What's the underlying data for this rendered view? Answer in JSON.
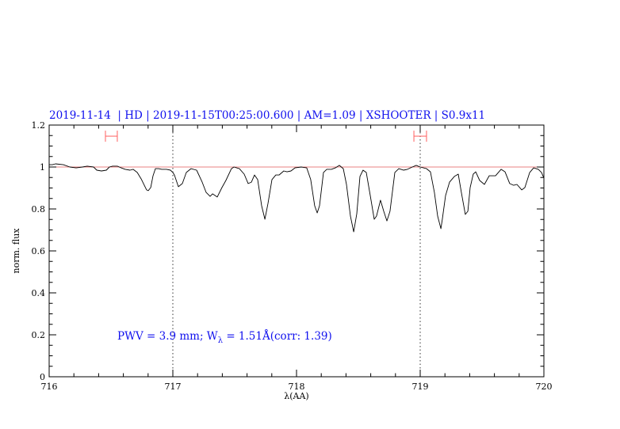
{
  "chart_data": {
    "type": "line",
    "title": "2019-11-14  | HD | 2019-11-15T00:25:00.600 | AM=1.09 | XSHOOTER | S0.9x11",
    "xlabel": "λ(AA)",
    "ylabel": "norm. flux",
    "xlim": [
      716,
      720
    ],
    "ylim": [
      0,
      1.2
    ],
    "xticks": [
      "716",
      "717",
      "718",
      "719",
      "720"
    ],
    "yticks": [
      "0",
      "0.2",
      "0.4",
      "0.6",
      "0.8",
      "1",
      "1.2"
    ],
    "grid": false,
    "reference_line": {
      "y": 1.0,
      "color": "#e88080"
    },
    "dotted_vlines": [
      717,
      719
    ],
    "range_markers": [
      {
        "x_from": 716.455,
        "x_to": 716.551,
        "y": 1.147,
        "color": "#ff6060"
      },
      {
        "x_from": 718.949,
        "x_to": 719.051,
        "y": 1.147,
        "color": "#ff6060"
      }
    ],
    "annotation": {
      "pre": "PWV = 3.9 mm; W",
      "sub": "λ",
      "post": " = 1.51Å(corr: 1.39)",
      "color": "#1010ee"
    },
    "series": [
      {
        "color": "#000000",
        "points": [
          [
            716.0,
            1.011
          ],
          [
            716.026,
            1.011
          ],
          [
            716.051,
            1.015
          ],
          [
            716.115,
            1.011
          ],
          [
            716.167,
            1.0
          ],
          [
            716.218,
            0.996
          ],
          [
            716.269,
            1.0
          ],
          [
            716.308,
            1.004
          ],
          [
            716.359,
            1.0
          ],
          [
            716.385,
            0.985
          ],
          [
            716.423,
            0.981
          ],
          [
            716.462,
            0.985
          ],
          [
            716.487,
            1.0
          ],
          [
            716.513,
            1.004
          ],
          [
            716.551,
            1.004
          ],
          [
            716.583,
            0.996
          ],
          [
            716.615,
            0.989
          ],
          [
            716.654,
            0.985
          ],
          [
            716.679,
            0.989
          ],
          [
            716.712,
            0.974
          ],
          [
            716.744,
            0.943
          ],
          [
            716.769,
            0.913
          ],
          [
            716.788,
            0.891
          ],
          [
            716.801,
            0.887
          ],
          [
            716.821,
            0.902
          ],
          [
            716.84,
            0.958
          ],
          [
            716.859,
            0.992
          ],
          [
            716.885,
            0.992
          ],
          [
            716.91,
            0.989
          ],
          [
            716.949,
            0.989
          ],
          [
            716.981,
            0.985
          ],
          [
            717.0,
            0.974
          ],
          [
            717.013,
            0.962
          ],
          [
            717.045,
            0.906
          ],
          [
            717.077,
            0.921
          ],
          [
            717.109,
            0.974
          ],
          [
            717.147,
            0.992
          ],
          [
            717.192,
            0.985
          ],
          [
            717.237,
            0.928
          ],
          [
            717.269,
            0.879
          ],
          [
            717.301,
            0.86
          ],
          [
            717.321,
            0.872
          ],
          [
            717.359,
            0.857
          ],
          [
            717.397,
            0.902
          ],
          [
            717.429,
            0.936
          ],
          [
            717.474,
            0.992
          ],
          [
            717.494,
            1.0
          ],
          [
            717.538,
            0.992
          ],
          [
            717.577,
            0.966
          ],
          [
            717.609,
            0.921
          ],
          [
            717.635,
            0.928
          ],
          [
            717.66,
            0.962
          ],
          [
            717.686,
            0.94
          ],
          [
            717.718,
            0.815
          ],
          [
            717.744,
            0.751
          ],
          [
            717.769,
            0.826
          ],
          [
            717.801,
            0.94
          ],
          [
            717.833,
            0.962
          ],
          [
            717.859,
            0.962
          ],
          [
            717.897,
            0.981
          ],
          [
            717.923,
            0.977
          ],
          [
            717.955,
            0.981
          ],
          [
            717.987,
            0.996
          ],
          [
            718.038,
            1.0
          ],
          [
            718.083,
            0.996
          ],
          [
            718.115,
            0.94
          ],
          [
            718.147,
            0.815
          ],
          [
            718.167,
            0.781
          ],
          [
            718.186,
            0.815
          ],
          [
            718.218,
            0.974
          ],
          [
            718.244,
            0.989
          ],
          [
            718.282,
            0.989
          ],
          [
            718.314,
            0.996
          ],
          [
            718.346,
            1.008
          ],
          [
            718.378,
            0.992
          ],
          [
            718.404,
            0.917
          ],
          [
            718.436,
            0.766
          ],
          [
            718.462,
            0.691
          ],
          [
            718.487,
            0.777
          ],
          [
            718.513,
            0.955
          ],
          [
            718.538,
            0.985
          ],
          [
            718.564,
            0.974
          ],
          [
            718.596,
            0.864
          ],
          [
            718.628,
            0.751
          ],
          [
            718.647,
            0.766
          ],
          [
            718.679,
            0.842
          ],
          [
            718.705,
            0.789
          ],
          [
            718.731,
            0.743
          ],
          [
            718.756,
            0.789
          ],
          [
            718.795,
            0.974
          ],
          [
            718.827,
            0.992
          ],
          [
            718.865,
            0.985
          ],
          [
            718.897,
            0.989
          ],
          [
            718.936,
            1.0
          ],
          [
            718.968,
            1.008
          ],
          [
            719.0,
            1.0
          ],
          [
            719.051,
            0.992
          ],
          [
            719.083,
            0.977
          ],
          [
            719.115,
            0.879
          ],
          [
            719.141,
            0.766
          ],
          [
            719.167,
            0.706
          ],
          [
            719.179,
            0.751
          ],
          [
            719.205,
            0.864
          ],
          [
            719.237,
            0.928
          ],
          [
            719.276,
            0.955
          ],
          [
            719.308,
            0.966
          ],
          [
            719.333,
            0.879
          ],
          [
            719.365,
            0.774
          ],
          [
            719.385,
            0.789
          ],
          [
            719.404,
            0.902
          ],
          [
            719.429,
            0.966
          ],
          [
            719.449,
            0.977
          ],
          [
            719.481,
            0.936
          ],
          [
            719.519,
            0.917
          ],
          [
            719.558,
            0.958
          ],
          [
            719.59,
            0.958
          ],
          [
            719.609,
            0.958
          ],
          [
            719.654,
            0.989
          ],
          [
            719.686,
            0.977
          ],
          [
            719.724,
            0.921
          ],
          [
            719.756,
            0.913
          ],
          [
            719.782,
            0.917
          ],
          [
            719.821,
            0.891
          ],
          [
            719.846,
            0.902
          ],
          [
            719.885,
            0.974
          ],
          [
            719.917,
            0.996
          ],
          [
            719.955,
            0.989
          ],
          [
            719.981,
            0.974
          ],
          [
            720.0,
            0.947
          ]
        ]
      }
    ]
  }
}
